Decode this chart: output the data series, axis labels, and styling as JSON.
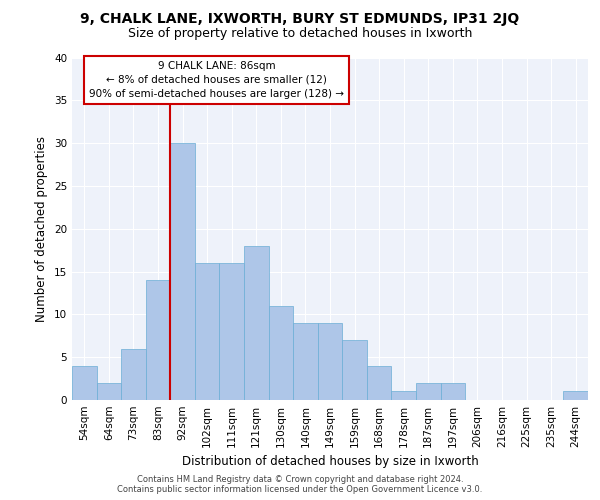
{
  "title1": "9, CHALK LANE, IXWORTH, BURY ST EDMUNDS, IP31 2JQ",
  "title2": "Size of property relative to detached houses in Ixworth",
  "xlabel": "Distribution of detached houses by size in Ixworth",
  "ylabel": "Number of detached properties",
  "categories": [
    "54sqm",
    "64sqm",
    "73sqm",
    "83sqm",
    "92sqm",
    "102sqm",
    "111sqm",
    "121sqm",
    "130sqm",
    "140sqm",
    "149sqm",
    "159sqm",
    "168sqm",
    "178sqm",
    "187sqm",
    "197sqm",
    "206sqm",
    "216sqm",
    "225sqm",
    "235sqm",
    "244sqm"
  ],
  "values": [
    4,
    2,
    6,
    14,
    30,
    16,
    16,
    18,
    11,
    9,
    9,
    7,
    4,
    1,
    2,
    2,
    0,
    0,
    0,
    0,
    1
  ],
  "bar_color": "#aec6e8",
  "bar_edgecolor": "#6aaed6",
  "vline_color": "#cc0000",
  "vline_pos": 3.5,
  "annotation_lines": [
    "9 CHALK LANE: 86sqm",
    "← 8% of detached houses are smaller (12)",
    "90% of semi-detached houses are larger (128) →"
  ],
  "annotation_box_edgecolor": "#cc0000",
  "annotation_box_facecolor": "#ffffff",
  "ylim": [
    0,
    40
  ],
  "yticks": [
    0,
    5,
    10,
    15,
    20,
    25,
    30,
    35,
    40
  ],
  "background_color": "#eef2fa",
  "grid_color": "#ffffff",
  "footer1": "Contains HM Land Registry data © Crown copyright and database right 2024.",
  "footer2": "Contains public sector information licensed under the Open Government Licence v3.0.",
  "title1_fontsize": 10,
  "title2_fontsize": 9,
  "tick_fontsize": 7.5,
  "ylabel_fontsize": 8.5,
  "xlabel_fontsize": 8.5,
  "annotation_fontsize": 7.5,
  "footer_fontsize": 6.0
}
